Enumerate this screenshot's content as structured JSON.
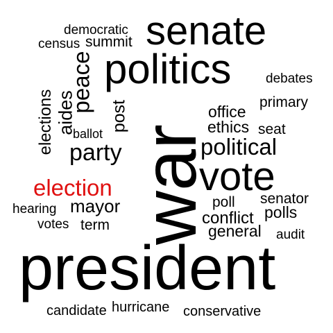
{
  "text_color": "#000000",
  "highlight_color": "#e01010",
  "background_color": "#ffffff",
  "words": {
    "senate": "senate",
    "politics": "politics",
    "democratic": "democratic",
    "census": "census",
    "summit": "summit",
    "debates": "debates",
    "primary": "primary",
    "office": "office",
    "ethics": "ethics",
    "seat": "seat",
    "political": "political",
    "vote": "vote",
    "senator": "senator",
    "poll": "poll",
    "polls": "polls",
    "conflict": "conflict",
    "general": "general",
    "audit": "audit",
    "party": "party",
    "election": "election",
    "mayor": "mayor",
    "hearing": "hearing",
    "votes": "votes",
    "term": "term",
    "ballot": "ballot",
    "president": "president",
    "candidate": "candidate",
    "hurricane": "hurricane",
    "conservative": "conservative",
    "war": "war",
    "peace": "peace",
    "aides": "aides",
    "elections": "elections",
    "post": "post"
  }
}
